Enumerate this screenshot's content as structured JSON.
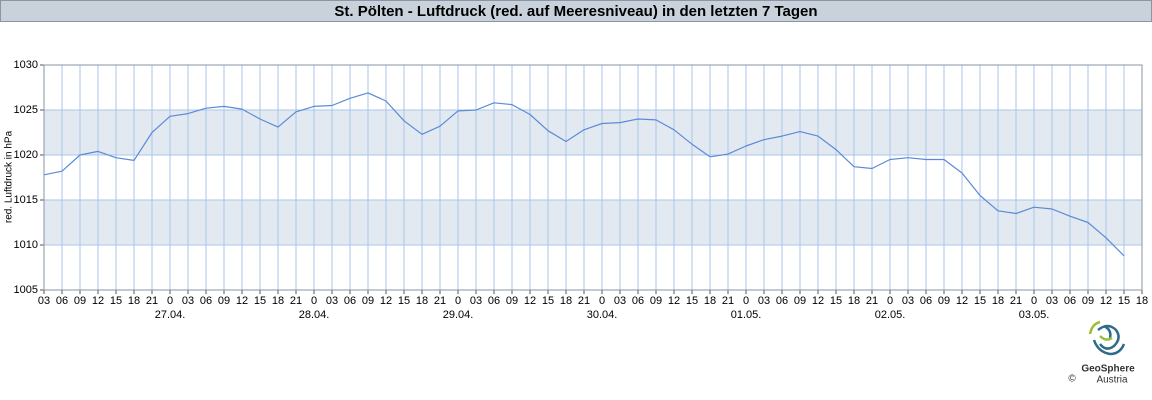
{
  "chart_data": {
    "type": "line",
    "title": "St. Pölten - Luftdruck (red. auf Meeresniveau) in den letzten 7 Tagen",
    "ylabel": "red. Luftdruck in hPa",
    "categories": [
      "03",
      "06",
      "09",
      "12",
      "15",
      "18",
      "21",
      "0",
      "03",
      "06",
      "09",
      "12",
      "15",
      "18",
      "21",
      "0",
      "03",
      "06",
      "09",
      "12",
      "15",
      "18",
      "21",
      "0",
      "03",
      "06",
      "09",
      "12",
      "15",
      "18",
      "21",
      "0",
      "03",
      "06",
      "09",
      "12",
      "15",
      "18",
      "21",
      "0",
      "03",
      "06",
      "09",
      "12",
      "15",
      "18",
      "21",
      "0",
      "03",
      "06",
      "09",
      "12",
      "15",
      "18",
      "21",
      "0",
      "03",
      "06",
      "09",
      "12",
      "15",
      "18"
    ],
    "date_labels": [
      "27.04.",
      "28.04.",
      "29.04.",
      "30.04.",
      "01.05.",
      "02.05.",
      "03.05."
    ],
    "values": [
      1017.8,
      1018.2,
      1020.0,
      1020.4,
      1019.7,
      1019.4,
      1022.5,
      1024.3,
      1024.6,
      1025.2,
      1025.4,
      1025.1,
      1024.0,
      1023.1,
      1024.8,
      1025.4,
      1025.5,
      1026.3,
      1026.9,
      1026.0,
      1023.8,
      1022.3,
      1023.2,
      1024.9,
      1025.0,
      1025.8,
      1025.6,
      1024.5,
      1022.7,
      1021.5,
      1022.8,
      1023.5,
      1023.6,
      1024.0,
      1023.9,
      1022.8,
      1021.2,
      1019.8,
      1020.1,
      1021.0,
      1021.7,
      1022.1,
      1022.6,
      1022.1,
      1020.6,
      1018.7,
      1018.5,
      1019.5,
      1019.7,
      1019.5,
      1019.5,
      1018.0,
      1015.5,
      1013.8,
      1013.5,
      1014.2,
      1014.0,
      1013.2,
      1012.5,
      1010.8,
      1008.8,
      null
    ],
    "color": "#5b8bd6",
    "ylim": [
      1005,
      1030
    ],
    "yticks": [
      1005,
      1010,
      1015,
      1020,
      1025,
      1030
    ],
    "grid": true,
    "banded_grid": true
  },
  "logo": {
    "name": "GeoSphere",
    "subtitle": "Austria",
    "copyright": "©"
  }
}
